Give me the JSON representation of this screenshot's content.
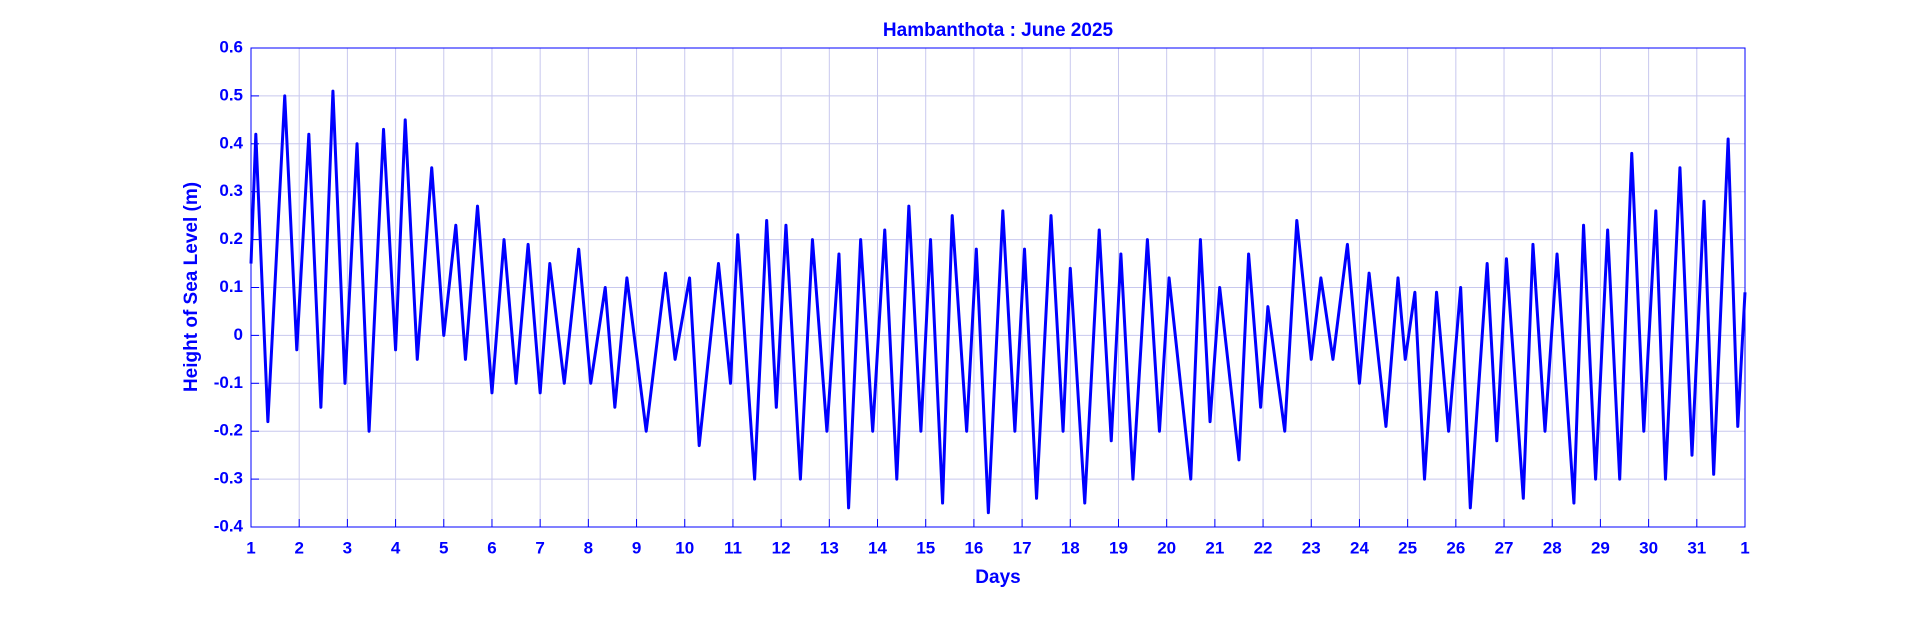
{
  "chart_data": {
    "type": "line",
    "title": "Hambanthota : June 2025",
    "xlabel": "Days",
    "ylabel": "Height of Sea Level (m)",
    "color": "#0000ff",
    "grid": true,
    "x": [
      1.0,
      1.1,
      1.35,
      1.7,
      1.95,
      2.2,
      2.45,
      2.7,
      2.95,
      3.2,
      3.45,
      3.75,
      4.0,
      4.2,
      4.45,
      4.75,
      5.0,
      5.25,
      5.45,
      5.7,
      6.0,
      6.25,
      6.5,
      6.75,
      7.0,
      7.2,
      7.5,
      7.8,
      8.05,
      8.35,
      8.55,
      8.8,
      9.2,
      9.6,
      9.8,
      10.1,
      10.3,
      10.7,
      10.95,
      11.1,
      11.45,
      11.7,
      11.9,
      12.1,
      12.4,
      12.65,
      12.95,
      13.2,
      13.4,
      13.65,
      13.9,
      14.15,
      14.4,
      14.65,
      14.9,
      15.1,
      15.35,
      15.55,
      15.85,
      16.05,
      16.3,
      16.6,
      16.85,
      17.05,
      17.3,
      17.6,
      17.85,
      18.0,
      18.3,
      18.6,
      18.85,
      19.05,
      19.3,
      19.6,
      19.85,
      20.05,
      20.5,
      20.7,
      20.9,
      21.1,
      21.5,
      21.7,
      21.95,
      22.1,
      22.45,
      22.7,
      23.0,
      23.2,
      23.45,
      23.75,
      24.0,
      24.2,
      24.55,
      24.8,
      24.95,
      25.15,
      25.35,
      25.6,
      25.85,
      26.1,
      26.3,
      26.65,
      26.85,
      27.05,
      27.4,
      27.6,
      27.85,
      28.1,
      28.45,
      28.65,
      28.9,
      29.15,
      29.4,
      29.65,
      29.9,
      30.15,
      30.35,
      30.65,
      30.9,
      31.15,
      31.35,
      31.65,
      31.85,
      32.0
    ],
    "values": [
      0.15,
      0.42,
      -0.18,
      0.5,
      -0.03,
      0.42,
      -0.15,
      0.51,
      -0.1,
      0.4,
      -0.2,
      0.43,
      -0.03,
      0.45,
      -0.05,
      0.35,
      0.0,
      0.23,
      -0.05,
      0.27,
      -0.12,
      0.2,
      -0.1,
      0.19,
      -0.12,
      0.15,
      -0.1,
      0.18,
      -0.1,
      0.1,
      -0.15,
      0.12,
      -0.2,
      0.13,
      -0.05,
      0.12,
      -0.23,
      0.15,
      -0.1,
      0.21,
      -0.3,
      0.24,
      -0.15,
      0.23,
      -0.3,
      0.2,
      -0.2,
      0.17,
      -0.36,
      0.2,
      -0.2,
      0.22,
      -0.3,
      0.27,
      -0.2,
      0.2,
      -0.35,
      0.25,
      -0.2,
      0.18,
      -0.37,
      0.26,
      -0.2,
      0.18,
      -0.34,
      0.25,
      -0.2,
      0.14,
      -0.35,
      0.22,
      -0.22,
      0.17,
      -0.3,
      0.2,
      -0.2,
      0.12,
      -0.3,
      0.2,
      -0.18,
      0.1,
      -0.26,
      0.17,
      -0.15,
      0.06,
      -0.2,
      0.24,
      -0.05,
      0.12,
      -0.05,
      0.19,
      -0.1,
      0.13,
      -0.19,
      0.12,
      -0.05,
      0.09,
      -0.3,
      0.09,
      -0.2,
      0.1,
      -0.36,
      0.15,
      -0.22,
      0.16,
      -0.34,
      0.19,
      -0.2,
      0.17,
      -0.35,
      0.23,
      -0.3,
      0.22,
      -0.3,
      0.38,
      -0.2,
      0.26,
      -0.3,
      0.35,
      -0.25,
      0.28,
      -0.29,
      0.41,
      -0.19,
      0.09
    ],
    "xlim": [
      1,
      32
    ],
    "xticks": [
      1,
      2,
      3,
      4,
      5,
      6,
      7,
      8,
      9,
      10,
      11,
      12,
      13,
      14,
      15,
      16,
      17,
      18,
      19,
      20,
      21,
      22,
      23,
      24,
      25,
      26,
      27,
      28,
      29,
      30,
      31,
      {
        "value": 32,
        "label": "1"
      }
    ],
    "ylim": [
      -0.4,
      0.6
    ],
    "yticks": [
      -0.4,
      -0.3,
      -0.2,
      -0.1,
      0,
      0.1,
      0.2,
      0.3,
      0.4,
      0.5,
      0.6
    ]
  }
}
